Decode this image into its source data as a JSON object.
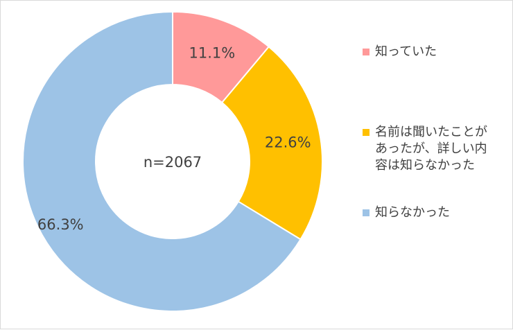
{
  "chart_data": {
    "type": "pie",
    "variant": "donut",
    "center_label": "n=2067",
    "slices": [
      {
        "label": "知っていた",
        "value": 11.1,
        "display": "11.1%",
        "color": "#FF9999"
      },
      {
        "label": "名前は聞いたことがあったが、詳しい内容は知らなかった",
        "value": 22.6,
        "display": "22.6%",
        "color": "#FFC000"
      },
      {
        "label": "知らなかった",
        "value": 66.3,
        "display": "66.3%",
        "color": "#9DC3E6"
      }
    ],
    "legend_position": "right"
  }
}
